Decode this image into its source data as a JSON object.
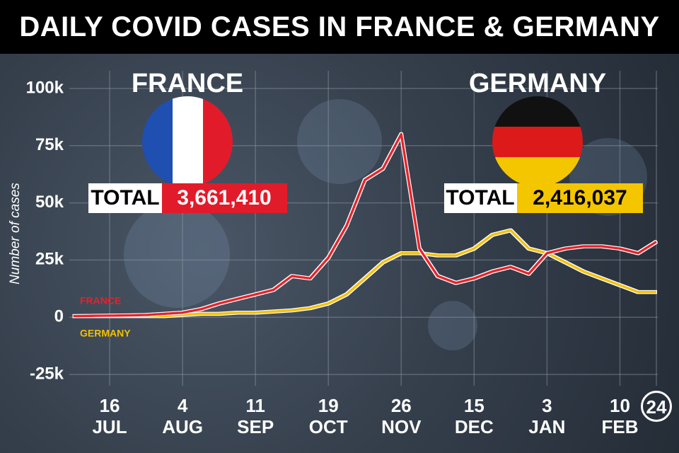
{
  "chart_data": {
    "type": "line",
    "title": "DAILY COVID CASES IN FRANCE & GERMANY",
    "y_label": "Number of cases",
    "categories": [
      null,
      null,
      "16 JUL",
      null,
      null,
      null,
      "4 AUG",
      null,
      null,
      null,
      "11 SEP",
      null,
      null,
      null,
      "19 OCT",
      null,
      null,
      null,
      "26 NOV",
      null,
      null,
      null,
      "15 DEC",
      null,
      null,
      null,
      "3 JAN",
      null,
      null,
      null,
      "10 FEB",
      null,
      "24"
    ],
    "series": [
      {
        "name": "FRANCE",
        "color": "#e8202a",
        "values": [
          500,
          600,
          700,
          800,
          1000,
          1500,
          2000,
          3500,
          6000,
          8000,
          10000,
          12000,
          18000,
          17000,
          26000,
          40000,
          60000,
          65000,
          80000,
          30000,
          18000,
          15000,
          17000,
          20000,
          22000,
          19000,
          28000,
          30000,
          31000,
          31000,
          30000,
          28000,
          33000
        ]
      },
      {
        "name": "GERMANY",
        "color": "#f2c200",
        "values": [
          500,
          500,
          500,
          500,
          500,
          500,
          1000,
          1500,
          1500,
          2000,
          2000,
          2500,
          3000,
          4000,
          6000,
          10000,
          17000,
          24000,
          28000,
          28000,
          27000,
          27000,
          30000,
          36000,
          38000,
          30000,
          28000,
          24000,
          20000,
          17000,
          14000,
          11000,
          11000
        ]
      }
    ],
    "ylim": [
      -25000,
      100000
    ],
    "yticks": [
      {
        "value": -25000,
        "label": "-25k"
      },
      0,
      {
        "value": 25000,
        "label": "25k"
      },
      {
        "value": 50000,
        "label": "50k"
      },
      {
        "value": 75000,
        "label": "75k"
      },
      {
        "value": 100000,
        "label": "100k"
      }
    ],
    "grid": true,
    "annotations": [
      {
        "heading": "FRANCE",
        "total_label": "TOTAL",
        "total": "3,661,410"
      },
      {
        "heading": "GERMANY",
        "total_label": "TOTAL",
        "total": "2,416,037"
      }
    ]
  }
}
